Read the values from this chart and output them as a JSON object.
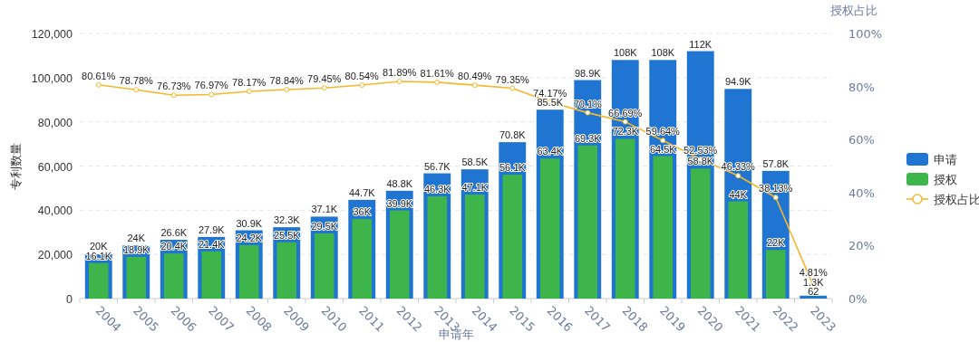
{
  "chart_data": {
    "type": "bar",
    "xlabel": "申请年",
    "ylabel": "专利数量",
    "y2label": "授权占比",
    "categories": [
      "2004",
      "2005",
      "2006",
      "2007",
      "2008",
      "2009",
      "2010",
      "2011",
      "2012",
      "2013",
      "2014",
      "2015",
      "2016",
      "2017",
      "2018",
      "2019",
      "2020",
      "2021",
      "2022",
      "2023"
    ],
    "series": [
      {
        "name": "申请",
        "color": "#1f75d1",
        "values": [
          20000,
          24000,
          26600,
          27900,
          30900,
          32300,
          37100,
          44700,
          48800,
          56700,
          58500,
          70800,
          85500,
          98900,
          108000,
          108000,
          112000,
          94900,
          57800,
          1300
        ],
        "value_labels": [
          "20K",
          "24K",
          "26.6K",
          "27.9K",
          "30.9K",
          "32.3K",
          "37.1K",
          "44.7K",
          "48.8K",
          "56.7K",
          "58.5K",
          "70.8K",
          "85.5K",
          "98.9K",
          "108K",
          "108K",
          "112K",
          "94.9K",
          "57.8K",
          "1.3K"
        ]
      },
      {
        "name": "授权",
        "color": "#3db54a",
        "values": [
          16100,
          18900,
          20400,
          21400,
          24200,
          25500,
          29500,
          36000,
          39900,
          46300,
          47100,
          56100,
          63400,
          69300,
          72300,
          64500,
          58800,
          44000,
          22000,
          62
        ],
        "value_labels": [
          "16.1K",
          "18.9K",
          "20.4K",
          "21.4K",
          "24.2K",
          "25.5K",
          "29.5K",
          "36K",
          "39.9K",
          "46.3K",
          "47.1K",
          "56.1K",
          "63.4K",
          "69.3K",
          "72.3K",
          "64.5K",
          "58.8K",
          "44K",
          "22K",
          "62"
        ]
      },
      {
        "name": "授权占比",
        "type": "line",
        "axis": "y2",
        "marker": "circle",
        "color": "#f4b82c",
        "values": [
          80.61,
          78.78,
          76.73,
          76.97,
          78.17,
          78.84,
          79.45,
          80.54,
          81.89,
          81.61,
          80.49,
          79.35,
          74.17,
          70.1,
          66.69,
          59.64,
          52.53,
          46.33,
          38.13,
          4.81
        ],
        "value_labels": [
          "80.61%",
          "78.78%",
          "76.73%",
          "76.97%",
          "78.17%",
          "78.84%",
          "79.45%",
          "80.54%",
          "81.89%",
          "81.61%",
          "80.49%",
          "79.35%",
          "74.17%",
          "70.1%",
          "66.69%",
          "59.64%",
          "52.53%",
          "46.33%",
          "38.13%",
          "4.81%"
        ]
      }
    ],
    "ylim": [
      0,
      120000
    ],
    "yticks": [
      {
        "value": 0,
        "label": "0"
      },
      {
        "value": 20000,
        "label": "20,000"
      },
      {
        "value": 40000,
        "label": "40,000"
      },
      {
        "value": 60000,
        "label": "60,000"
      },
      {
        "value": 80000,
        "label": "80,000"
      },
      {
        "value": 100000,
        "label": "100,000"
      },
      {
        "value": 120000,
        "label": "120,000"
      }
    ],
    "y2lim": [
      0,
      100
    ],
    "y2ticks": [
      {
        "value": 0,
        "label": "0%"
      },
      {
        "value": 20,
        "label": "20%"
      },
      {
        "value": 40,
        "label": "40%"
      },
      {
        "value": 60,
        "label": "60%"
      },
      {
        "value": 80,
        "label": "80%"
      },
      {
        "value": 100,
        "label": "100%"
      }
    ],
    "grid": "y",
    "legend": "right"
  }
}
